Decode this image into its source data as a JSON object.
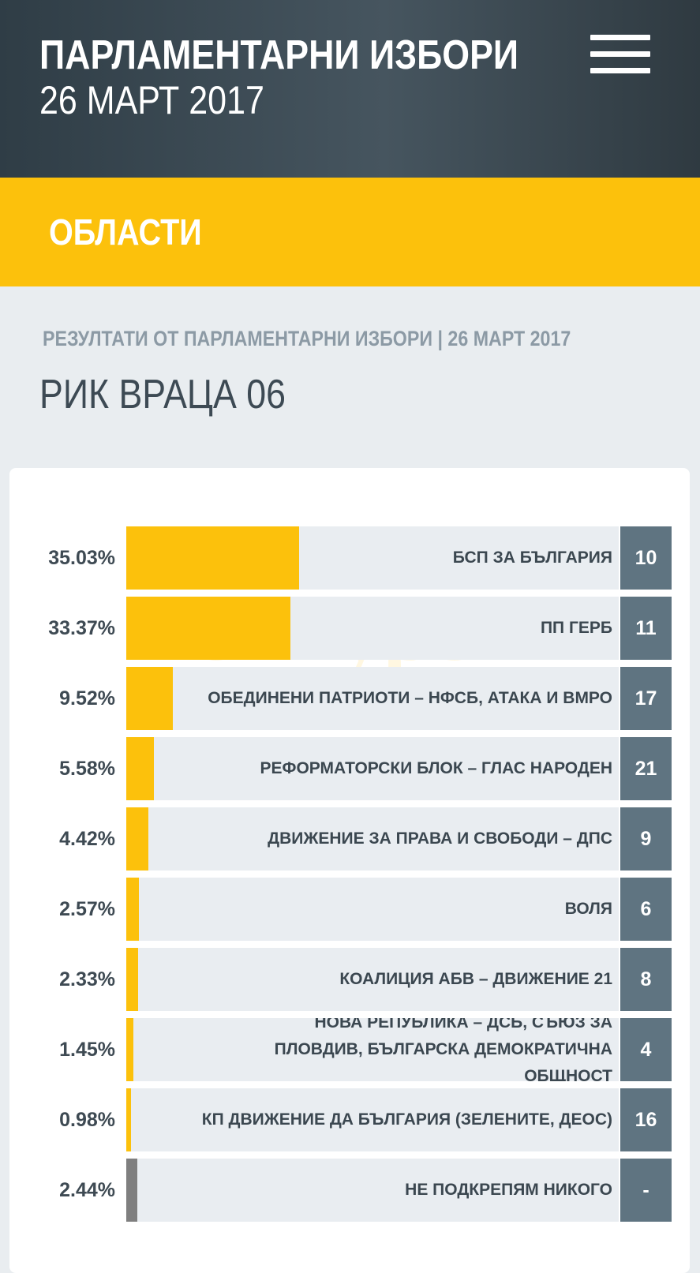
{
  "header": {
    "title": "ПАРЛАМЕНТАРНИ ИЗБОРИ",
    "date": "26 МАРТ 2017",
    "menu_icon": "hamburger-menu-icon"
  },
  "section": {
    "label": "ОБЛАСТИ"
  },
  "subheading": "РЕЗУЛТАТИ ОТ ПАРЛАМЕНТАРНИ ИЗБОРИ | 26 МАРТ 2017",
  "region_title": "РИК ВРАЦА 06",
  "watermark": "Конкурент",
  "colors": {
    "header_bg": "#3b4a53",
    "accent_yellow": "#fcc10c",
    "number_box": "#5f7481",
    "none_bar": "#7f7f7f"
  },
  "results": [
    {
      "percent_label": "35.03%",
      "percent": 35.03,
      "party": "БСП ЗА БЪЛГАРИЯ",
      "ballot_number": "10"
    },
    {
      "percent_label": "33.37%",
      "percent": 33.37,
      "party": "ПП ГЕРБ",
      "ballot_number": "11"
    },
    {
      "percent_label": "9.52%",
      "percent": 9.52,
      "party": "ОБЕДИНЕНИ ПАТРИОТИ – НФСБ, АТАКА И ВМРО",
      "ballot_number": "17"
    },
    {
      "percent_label": "5.58%",
      "percent": 5.58,
      "party": "РЕФОРМАТОРСКИ БЛОК – ГЛАС НАРОДЕН",
      "ballot_number": "21"
    },
    {
      "percent_label": "4.42%",
      "percent": 4.42,
      "party": "ДВИЖЕНИЕ ЗА ПРАВА И СВОБОДИ – ДПС",
      "ballot_number": "9"
    },
    {
      "percent_label": "2.57%",
      "percent": 2.57,
      "party": "ВОЛЯ",
      "ballot_number": "6"
    },
    {
      "percent_label": "2.33%",
      "percent": 2.33,
      "party": "КОАЛИЦИЯ АБВ – ДВИЖЕНИЕ 21",
      "ballot_number": "8"
    },
    {
      "percent_label": "1.45%",
      "percent": 1.45,
      "party": "НОВА РЕПУБЛИКА – ДСБ, СЪЮЗ ЗА ПЛОВДИВ, БЪЛГАРСКА ДЕМОКРАТИЧНА ОБЩНОСТ",
      "ballot_number": "4"
    },
    {
      "percent_label": "0.98%",
      "percent": 0.98,
      "party": "КП ДВИЖЕНИЕ ДА БЪЛГАРИЯ (ЗЕЛЕНИТЕ, ДЕОС)",
      "ballot_number": "16"
    },
    {
      "percent_label": "2.44%",
      "percent": 2.44,
      "party": "НЕ ПОДКРЕПЯМ НИКОГО",
      "ballot_number": "-",
      "is_none": true
    }
  ]
}
